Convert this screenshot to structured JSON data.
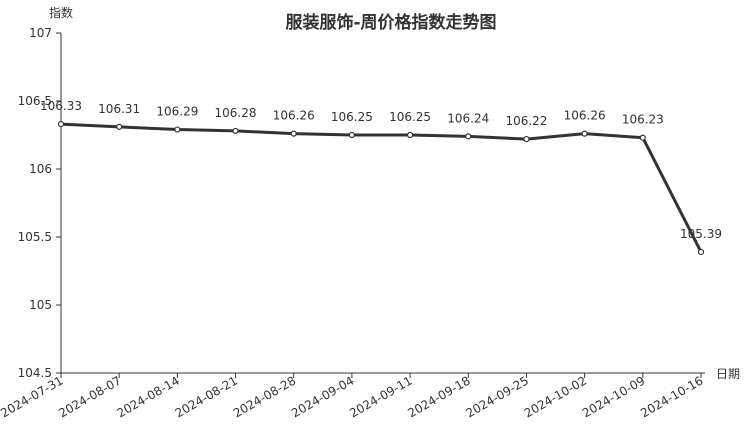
{
  "chart_data": {
    "type": "line",
    "title": "服装服饰-周价格指数走势图",
    "xlabel": "日期",
    "ylabel": "指数",
    "ylim": [
      104.5,
      107
    ],
    "yticks": [
      "104.5",
      "105",
      "105.5",
      "106",
      "106.5",
      "107"
    ],
    "grid": false,
    "categories": [
      "2024-07-31",
      "2024-08-07",
      "2024-08-14",
      "2024-08-21",
      "2024-08-28",
      "2024-09-04",
      "2024-09-11",
      "2024-09-18",
      "2024-09-25",
      "2024-10-02",
      "2024-10-09",
      "2024-10-16"
    ],
    "values": [
      106.33,
      106.31,
      106.29,
      106.28,
      106.26,
      106.25,
      106.25,
      106.24,
      106.22,
      106.26,
      106.23,
      105.39
    ],
    "labels": [
      "106.33",
      "106.31",
      "106.29",
      "106.28",
      "106.26",
      "106.25",
      "106.25",
      "106.24",
      "106.22",
      "106.26",
      "106.23",
      "105.39"
    ],
    "colors": {
      "line": "#333333",
      "text": "#333333",
      "axis": "#333333"
    }
  }
}
